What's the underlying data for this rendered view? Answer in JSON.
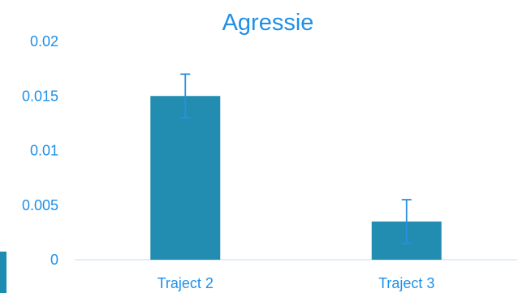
{
  "chart_data": {
    "type": "bar",
    "title": "Agressie",
    "categories": [
      "Traject 2",
      "Traject 3"
    ],
    "values": [
      0.015,
      0.0035
    ],
    "error_bars": [
      0.002,
      0.002
    ],
    "ylim": [
      0,
      0.02
    ],
    "yticks": [
      {
        "value": 0,
        "label": "0"
      },
      {
        "value": 0.005,
        "label": "0.005"
      },
      {
        "value": 0.01,
        "label": "0.01"
      },
      {
        "value": 0.015,
        "label": "0.015"
      },
      {
        "value": 0.02,
        "label": "0.02"
      }
    ],
    "grid": false,
    "colors": {
      "bar": "#228DB0",
      "text": "#1E90E8",
      "axis": "#CFE3F2",
      "error": "#2B8FE0",
      "accent": "#1E8CB0"
    }
  }
}
